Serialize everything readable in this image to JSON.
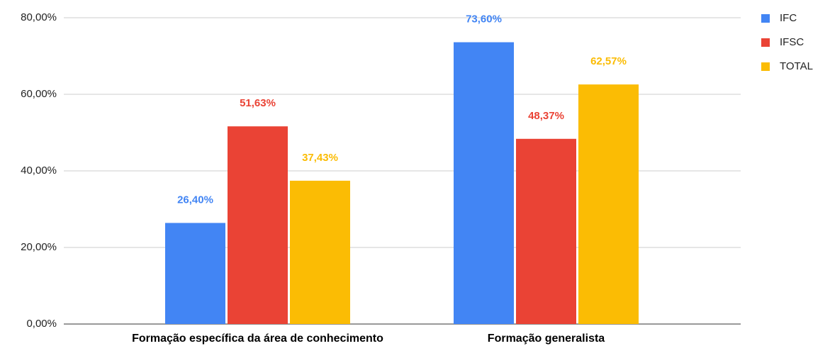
{
  "chart_data": {
    "type": "bar",
    "categories": [
      "Formação específica da área de conhecimento",
      "Formação generalista"
    ],
    "series": [
      {
        "name": "IFC",
        "color": "#4285f4",
        "values": [
          26.4,
          73.6
        ],
        "value_labels": [
          "26,40%",
          "73,60%"
        ]
      },
      {
        "name": "IFSC",
        "color": "#ea4335",
        "values": [
          51.63,
          48.37
        ],
        "value_labels": [
          "51,63%",
          "48,37%"
        ]
      },
      {
        "name": "TOTAL",
        "color": "#fbbc04",
        "values": [
          37.43,
          62.57
        ],
        "value_labels": [
          "37,43%",
          "62,57%"
        ]
      }
    ],
    "ylim": [
      0,
      80
    ],
    "yticks": [
      {
        "value": 0,
        "label": "0,00%"
      },
      {
        "value": 20,
        "label": "20,00%"
      },
      {
        "value": 40,
        "label": "40,00%"
      },
      {
        "value": 60,
        "label": "60,00%"
      },
      {
        "value": 80,
        "label": "80,00%"
      }
    ],
    "grid": true,
    "legend": "right"
  }
}
